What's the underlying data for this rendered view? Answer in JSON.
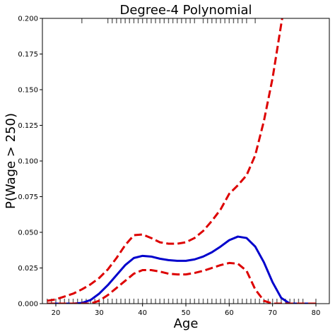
{
  "chart_data": {
    "type": "line",
    "title": "Degree-4 Polynomial",
    "xlabel": "Age",
    "ylabel": "P(Wage > 250)",
    "xlim": [
      16.9,
      83.1
    ],
    "ylim": [
      0,
      0.2
    ],
    "x_ticks": [
      20,
      30,
      40,
      50,
      60,
      70,
      80
    ],
    "x_tick_labels": [
      "20",
      "30",
      "40",
      "50",
      "60",
      "70",
      "80"
    ],
    "y_ticks": [
      0,
      0.025,
      0.05,
      0.075,
      0.1,
      0.125,
      0.15,
      0.175,
      0.2
    ],
    "y_tick_labels": [
      "0.000",
      "0.025",
      "0.050",
      "0.075",
      "0.100",
      "0.125",
      "0.150",
      "0.175",
      "0.200"
    ],
    "grid": false,
    "colors": {
      "fit": "#0000cc",
      "band": "#dd0000",
      "rug": "#666666"
    },
    "series": [
      {
        "role": "fit",
        "style": "solid",
        "x": [
          18,
          20,
          22,
          24,
          26,
          28,
          30,
          32,
          34,
          36,
          38,
          40,
          42,
          44,
          46,
          48,
          50,
          52,
          54,
          56,
          58,
          60,
          62,
          64,
          66,
          68,
          70,
          72,
          74,
          76,
          78,
          80
        ],
        "y": [
          0.0,
          0.0,
          0.0,
          0.0,
          0.0005,
          0.0025,
          0.007,
          0.013,
          0.02,
          0.027,
          0.032,
          0.0335,
          0.033,
          0.0315,
          0.0305,
          0.03,
          0.03,
          0.031,
          0.033,
          0.036,
          0.04,
          0.0445,
          0.047,
          0.046,
          0.04,
          0.029,
          0.015,
          0.004,
          0.0,
          0.0,
          0.0,
          0.0
        ]
      },
      {
        "role": "band-upper",
        "style": "dashed",
        "x": [
          18,
          20,
          22,
          24,
          26,
          28,
          30,
          32,
          34,
          36,
          38,
          40,
          42,
          44,
          46,
          48,
          50,
          52,
          54,
          56,
          58,
          60,
          62,
          64,
          66,
          68,
          70,
          72,
          72.5
        ],
        "y": [
          0.002,
          0.003,
          0.005,
          0.007,
          0.01,
          0.0135,
          0.018,
          0.024,
          0.032,
          0.041,
          0.048,
          0.0485,
          0.046,
          0.043,
          0.042,
          0.042,
          0.043,
          0.046,
          0.051,
          0.058,
          0.066,
          0.077,
          0.083,
          0.09,
          0.104,
          0.128,
          0.158,
          0.196,
          0.205
        ]
      },
      {
        "role": "band-lower",
        "style": "dashed",
        "x": [
          18,
          20,
          22,
          24,
          26,
          28,
          30,
          32,
          34,
          36,
          38,
          40,
          42,
          44,
          46,
          48,
          50,
          52,
          54,
          56,
          58,
          60,
          62,
          64,
          66,
          68,
          70,
          72,
          74,
          76,
          78,
          80
        ],
        "y": [
          0.0,
          0.0,
          0.0,
          0.0,
          0.0,
          0.0,
          0.002,
          0.006,
          0.011,
          0.016,
          0.021,
          0.0235,
          0.0235,
          0.0225,
          0.021,
          0.0205,
          0.0205,
          0.0215,
          0.023,
          0.025,
          0.027,
          0.0285,
          0.028,
          0.023,
          0.01,
          0.002,
          0.0,
          0.0,
          0.0,
          0.0,
          0.0,
          0.0
        ]
      }
    ],
    "rug_top_x": [
      26,
      32,
      33,
      34,
      35,
      36,
      37,
      38,
      39,
      40,
      41,
      42,
      43,
      44,
      45,
      46,
      47,
      48,
      49,
      50,
      51,
      52,
      54,
      55,
      56,
      57,
      58,
      59,
      60,
      61,
      62,
      63,
      64,
      66
    ],
    "rug_bottom_x": [
      18,
      19,
      20,
      21,
      22,
      23,
      24,
      25,
      26,
      27,
      28,
      29,
      30,
      31,
      32,
      33,
      34,
      35,
      36,
      37,
      38,
      39,
      40,
      41,
      42,
      43,
      44,
      45,
      46,
      47,
      48,
      49,
      50,
      51,
      52,
      53,
      54,
      55,
      56,
      57,
      58,
      59,
      60,
      61,
      62,
      63,
      64,
      65,
      66,
      67,
      68,
      69,
      70,
      71,
      72,
      73,
      74,
      75,
      76,
      77,
      80
    ]
  }
}
